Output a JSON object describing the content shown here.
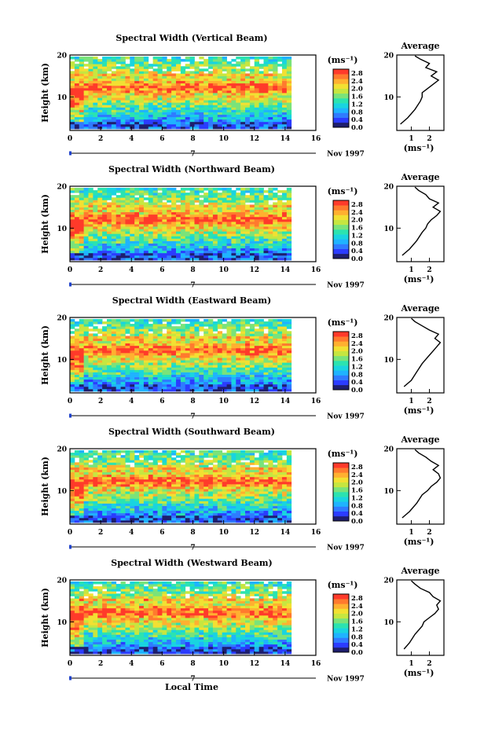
{
  "figure": {
    "xaxis_label": "Local Time",
    "date_label": "Nov 1997",
    "day_marker": "7",
    "height_label": "Height (km)",
    "units": "(ms⁻¹)",
    "colorbar_ticks": [
      "2.8",
      "2.4",
      "2.0",
      "1.6",
      "1.2",
      "0.8",
      "0.4",
      "0.0"
    ],
    "avg_title": "Average",
    "x_ticks": [
      "0",
      "2",
      "4",
      "6",
      "8",
      "10",
      "12",
      "14",
      "16"
    ],
    "y_ticks": [
      "20",
      "10"
    ],
    "avg_y_ticks": [
      "20",
      "10"
    ]
  },
  "colors": {
    "scale": [
      "#1e1e6e",
      "#2b3cff",
      "#2f7bff",
      "#1fb3ff",
      "#19d4e0",
      "#2be3b0",
      "#7ae37a",
      "#c6e640",
      "#f2e032",
      "#ffb030",
      "#ff7a2e",
      "#ff3a2a"
    ]
  },
  "chart_data": [
    {
      "type": "heatmap",
      "title": "Spectral Width (Vertical Beam)",
      "xlabel": "",
      "ylabel": "Height (km)",
      "xlim": [
        0,
        16
      ],
      "ylim": [
        2,
        20
      ],
      "data_extent_x": [
        0,
        14.4
      ],
      "colorbar": {
        "label": "(ms⁻¹)",
        "range": [
          0,
          3.0
        ]
      },
      "profile": {
        "title": "Average",
        "xlabel": "(ms⁻¹)",
        "x_ticks": [
          "1",
          "2"
        ],
        "xlim": [
          0.2,
          2.8
        ],
        "heights": [
          3.5,
          5,
          7,
          9,
          10,
          11,
          12,
          13,
          14,
          15,
          16,
          17,
          18,
          19,
          19.8
        ],
        "values": [
          0.4,
          0.8,
          1.2,
          1.5,
          1.6,
          1.6,
          1.9,
          2.2,
          2.5,
          2.1,
          2.4,
          1.8,
          2.0,
          1.5,
          1.2
        ]
      }
    },
    {
      "type": "heatmap",
      "title": "Spectral Width (Northward Beam)",
      "xlabel": "",
      "ylabel": "Height (km)",
      "xlim": [
        0,
        16
      ],
      "ylim": [
        2,
        20
      ],
      "data_extent_x": [
        0,
        14.4
      ],
      "colorbar": {
        "label": "(ms⁻¹)",
        "range": [
          0,
          3.0
        ]
      },
      "profile": {
        "title": "Average",
        "xlabel": "(ms⁻¹)",
        "x_ticks": [
          "1",
          "2"
        ],
        "xlim": [
          0.2,
          2.8
        ],
        "heights": [
          3.5,
          5,
          7,
          9,
          10,
          11,
          12,
          13,
          14,
          15,
          16,
          17,
          18,
          19,
          19.8
        ],
        "values": [
          0.5,
          0.9,
          1.3,
          1.6,
          1.8,
          1.9,
          2.1,
          2.4,
          2.6,
          2.2,
          2.5,
          2.0,
          1.8,
          1.4,
          1.2
        ]
      }
    },
    {
      "type": "heatmap",
      "title": "Spectral Width (Eastward Beam)",
      "xlabel": "",
      "ylabel": "Height (km)",
      "xlim": [
        0,
        16
      ],
      "ylim": [
        2,
        20
      ],
      "data_extent_x": [
        0,
        14.4
      ],
      "colorbar": {
        "label": "(ms⁻¹)",
        "range": [
          0,
          3.0
        ]
      },
      "profile": {
        "title": "Average",
        "xlabel": "(ms⁻¹)",
        "x_ticks": [
          "1",
          "2"
        ],
        "xlim": [
          0.2,
          2.8
        ],
        "heights": [
          3.5,
          5,
          7,
          9,
          10,
          11,
          12,
          13,
          14,
          15,
          16,
          17,
          18,
          19,
          19.8
        ],
        "values": [
          0.6,
          1.0,
          1.3,
          1.6,
          1.8,
          2.0,
          2.2,
          2.4,
          2.6,
          2.3,
          2.5,
          2.0,
          1.6,
          1.2,
          1.0
        ]
      }
    },
    {
      "type": "heatmap",
      "title": "Spectral Width (Southward Beam)",
      "xlabel": "",
      "ylabel": "Height (km)",
      "xlim": [
        0,
        16
      ],
      "ylim": [
        2,
        20
      ],
      "data_extent_x": [
        0,
        14.4
      ],
      "colorbar": {
        "label": "(ms⁻¹)",
        "range": [
          0,
          3.0
        ]
      },
      "profile": {
        "title": "Average",
        "xlabel": "(ms⁻¹)",
        "x_ticks": [
          "1",
          "2"
        ],
        "xlim": [
          0.2,
          2.8
        ],
        "heights": [
          3.5,
          5,
          7,
          9,
          10,
          11,
          12,
          13,
          14,
          15,
          16,
          17,
          18,
          19,
          19.8
        ],
        "values": [
          0.5,
          0.9,
          1.3,
          1.6,
          1.9,
          2.1,
          2.4,
          2.6,
          2.5,
          2.2,
          2.5,
          2.1,
          1.8,
          1.4,
          1.2
        ]
      }
    },
    {
      "type": "heatmap",
      "title": "Spectral Width (Westward Beam)",
      "xlabel": "Local Time",
      "ylabel": "Height (km)",
      "xlim": [
        0,
        16
      ],
      "ylim": [
        2,
        20
      ],
      "data_extent_x": [
        0,
        14.4
      ],
      "colorbar": {
        "label": "(ms⁻¹)",
        "range": [
          0,
          3.0
        ]
      },
      "profile": {
        "title": "Average",
        "xlabel": "(ms⁻¹)",
        "x_ticks": [
          "1",
          "2"
        ],
        "xlim": [
          0.2,
          2.8
        ],
        "heights": [
          3.5,
          5,
          7,
          9,
          10,
          11,
          12,
          13,
          14,
          15,
          16,
          17,
          18,
          19,
          19.8
        ],
        "values": [
          0.6,
          0.9,
          1.2,
          1.6,
          1.7,
          2.0,
          2.3,
          2.5,
          2.4,
          2.6,
          2.2,
          2.0,
          1.5,
          1.2,
          1.0
        ]
      }
    }
  ]
}
